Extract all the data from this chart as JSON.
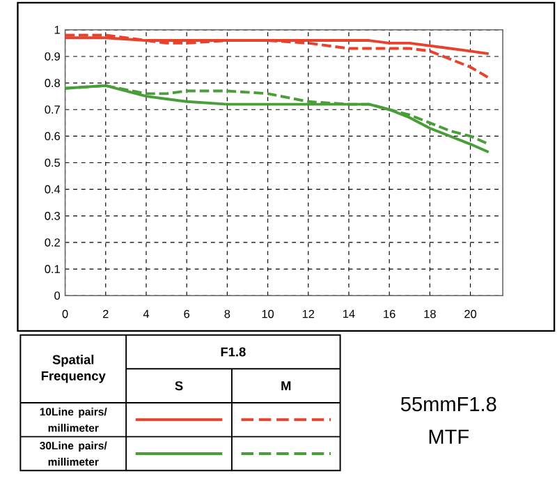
{
  "chart_data": {
    "type": "line",
    "title": "55mmF1.8",
    "subtitle": "MTF",
    "x": [
      0,
      2,
      4,
      5,
      6,
      8,
      10,
      12,
      14,
      15,
      16,
      17,
      18,
      19,
      20,
      20.9
    ],
    "xlim": [
      0,
      21.6
    ],
    "xticks": [
      0,
      2,
      4,
      6,
      8,
      10,
      12,
      14,
      16,
      18,
      20
    ],
    "ylim": [
      0,
      1
    ],
    "yticks": [
      0,
      0.1,
      0.2,
      0.3,
      0.4,
      0.5,
      0.6,
      0.7,
      0.8,
      0.9,
      1
    ],
    "grid": true,
    "legend_title": "Spatial Frequency",
    "series": [
      {
        "color": "#e8412c",
        "line_style": "solid",
        "values": [
          0.97,
          0.97,
          0.96,
          0.96,
          0.96,
          0.96,
          0.96,
          0.96,
          0.96,
          0.96,
          0.95,
          0.95,
          0.94,
          0.93,
          0.92,
          0.91
        ]
      },
      {
        "color": "#e8412c",
        "line_style": "dashed",
        "values": [
          0.98,
          0.98,
          0.96,
          0.95,
          0.95,
          0.96,
          0.96,
          0.95,
          0.93,
          0.93,
          0.93,
          0.93,
          0.92,
          0.89,
          0.86,
          0.82
        ]
      },
      {
        "color": "#4a9e3a",
        "line_style": "solid",
        "values": [
          0.78,
          0.79,
          0.75,
          0.74,
          0.73,
          0.72,
          0.72,
          0.72,
          0.72,
          0.72,
          0.7,
          0.67,
          0.63,
          0.6,
          0.57,
          0.54
        ]
      },
      {
        "color": "#4a9e3a",
        "line_style": "dashed",
        "values": [
          0.78,
          0.79,
          0.76,
          0.76,
          0.77,
          0.77,
          0.76,
          0.73,
          0.72,
          0.72,
          0.7,
          0.68,
          0.65,
          0.62,
          0.6,
          0.57
        ]
      }
    ],
    "annotations": [
      "F1.8",
      "S",
      "M",
      "10Line pairs/ millimeter",
      "30Line pairs/ millimeter"
    ]
  }
}
